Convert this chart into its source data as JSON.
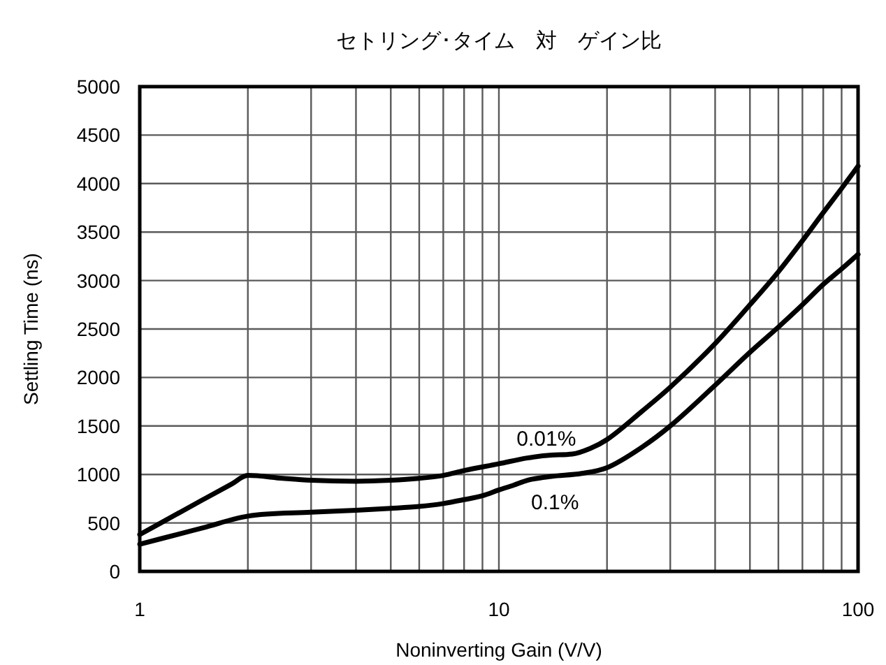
{
  "chart_data": {
    "type": "line",
    "title": "セトリング･タイム　対　ゲイン比",
    "xlabel": "Noninverting Gain (V/V)",
    "ylabel": "Settling Time (ns)",
    "log": "x",
    "grid": true,
    "line_style": "solid",
    "xlim": [
      1,
      100
    ],
    "xticks": [
      1,
      {
        "value": 2,
        "label": null
      },
      {
        "value": 3,
        "label": null
      },
      {
        "value": 4,
        "label": null
      },
      {
        "value": 5,
        "label": null
      },
      {
        "value": 6,
        "label": null
      },
      {
        "value": 7,
        "label": null
      },
      {
        "value": 8,
        "label": null
      },
      {
        "value": 9,
        "label": null
      },
      10,
      {
        "value": 20,
        "label": null
      },
      {
        "value": 30,
        "label": null
      },
      {
        "value": 40,
        "label": null
      },
      {
        "value": 50,
        "label": null
      },
      {
        "value": 60,
        "label": null
      },
      {
        "value": 70,
        "label": null
      },
      {
        "value": 80,
        "label": null
      },
      {
        "value": 90,
        "label": null
      },
      100
    ],
    "ylim": [
      0,
      5000
    ],
    "yticks": [
      0,
      500,
      1000,
      1500,
      2000,
      2500,
      3000,
      3500,
      4000,
      4500,
      5000
    ],
    "series": [
      {
        "name": "0.01%",
        "color": "#000000",
        "x": [
          1,
          1.5,
          1.8,
          2,
          2.5,
          3,
          4,
          5,
          6,
          7,
          8,
          10,
          12,
          14,
          16,
          18,
          20,
          25,
          30,
          40,
          50,
          60,
          70,
          80,
          90,
          100
        ],
        "values": [
          380,
          740,
          900,
          990,
          960,
          940,
          930,
          940,
          960,
          990,
          1040,
          1110,
          1170,
          1200,
          1210,
          1270,
          1360,
          1650,
          1900,
          2350,
          2750,
          3090,
          3410,
          3700,
          3950,
          4180
        ]
      },
      {
        "name": "0.1%",
        "color": "#000000",
        "x": [
          1,
          1.5,
          2,
          3,
          4,
          5,
          6,
          7,
          8,
          9,
          10,
          11,
          12,
          14,
          17,
          20,
          25,
          30,
          40,
          50,
          60,
          70,
          80,
          90,
          100
        ],
        "values": [
          280,
          450,
          570,
          610,
          630,
          650,
          670,
          700,
          740,
          780,
          840,
          890,
          940,
          980,
          1010,
          1070,
          1280,
          1500,
          1920,
          2260,
          2520,
          2750,
          2960,
          3120,
          3270
        ]
      }
    ]
  }
}
